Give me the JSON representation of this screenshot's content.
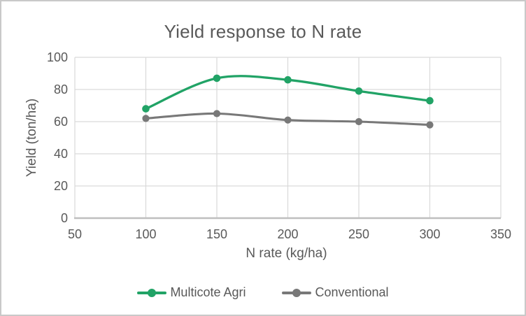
{
  "figure": {
    "title": "Yield response to N rate"
  },
  "chart_data": {
    "type": "line",
    "title": "Yield response to N rate",
    "xlabel": "N rate (kg/ha)",
    "ylabel": "Yield (ton/ha)",
    "x": [
      100,
      150,
      200,
      250,
      300
    ],
    "series": [
      {
        "name": "Multicote Agri",
        "color": "#21a366",
        "values": [
          68,
          87,
          86,
          79,
          73
        ],
        "marker": "circle",
        "smooth": true
      },
      {
        "name": "Conventional",
        "color": "#787878",
        "values": [
          62,
          65,
          61,
          60,
          58
        ],
        "marker": "circle",
        "smooth": true
      }
    ],
    "xlim": [
      50,
      350
    ],
    "ylim": [
      0,
      100
    ],
    "xticks": [
      50,
      100,
      150,
      200,
      250,
      300,
      350
    ],
    "yticks": [
      0,
      20,
      40,
      60,
      80,
      100
    ],
    "grid": true,
    "legend_position": "bottom"
  },
  "colors": {
    "background": "#ffffff",
    "border": "#c9c9c9",
    "gridline": "#d9d9d9",
    "axis_line": "#bfbfbf",
    "text": "#595959"
  }
}
